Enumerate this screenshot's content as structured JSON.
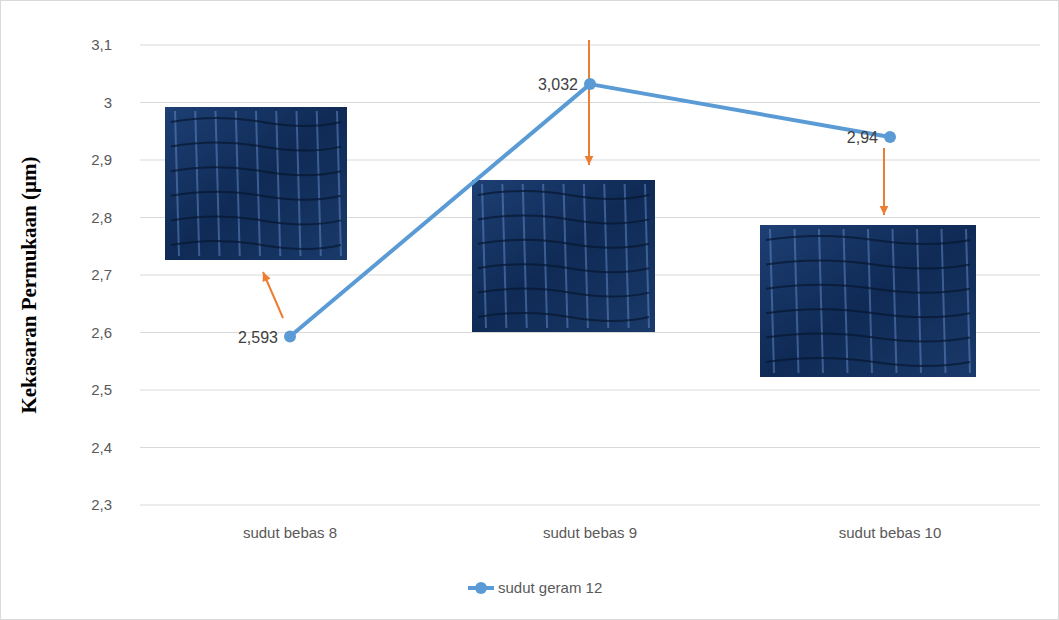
{
  "chart_data": {
    "type": "line",
    "y_label": "Kekasaran Permukaan (µm)",
    "categories": [
      "sudut bebas 8",
      "sudut bebas 9",
      "sudut bebas 10"
    ],
    "series": [
      {
        "name": "sudut geram 12",
        "color": "#5b9bd5",
        "marker": "circle",
        "line_style": "solid",
        "values": [
          2.593,
          3.032,
          2.94
        ],
        "value_labels": [
          "2,593",
          "3,032",
          "2,94"
        ]
      }
    ],
    "ylim": [
      2.3,
      3.1
    ],
    "yticks": [
      {
        "value": 2.3,
        "label": "2,3"
      },
      {
        "value": 2.4,
        "label": "2,4"
      },
      {
        "value": 2.5,
        "label": "2,5"
      },
      {
        "value": 2.6,
        "label": "2,6"
      },
      {
        "value": 2.7,
        "label": "2,7"
      },
      {
        "value": 2.8,
        "label": "2,8"
      },
      {
        "value": 2.9,
        "label": "2,9"
      },
      3,
      {
        "value": 3.1,
        "label": "3,1"
      }
    ],
    "grid": true,
    "legend": "bottom",
    "data_labels": true
  }
}
